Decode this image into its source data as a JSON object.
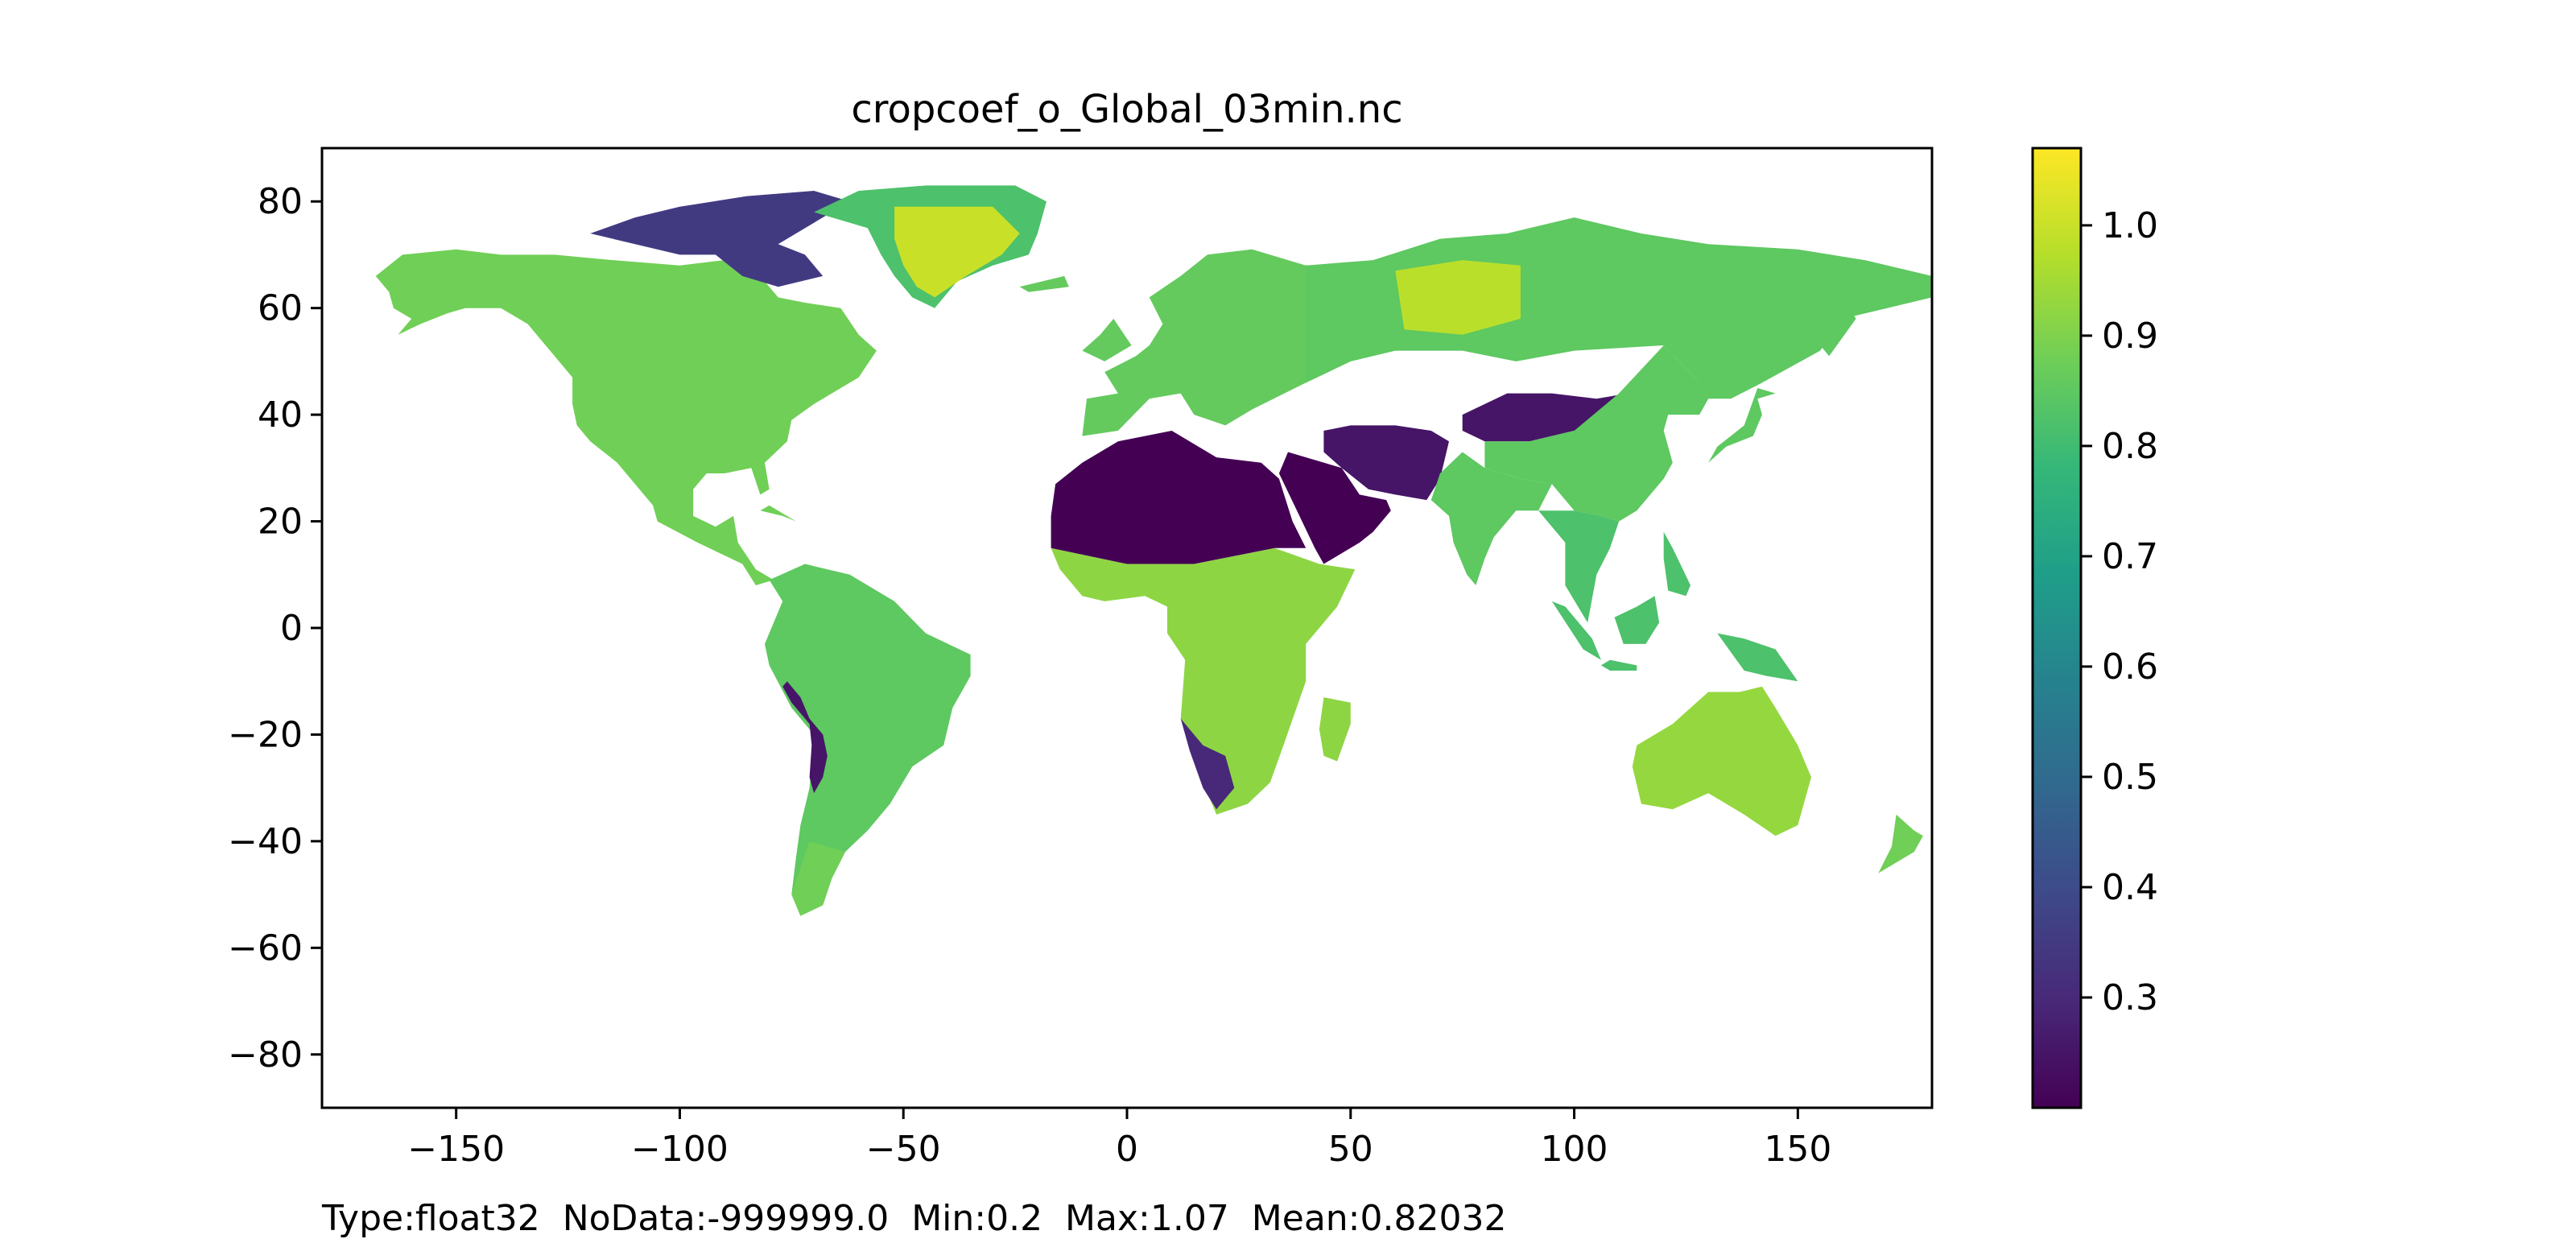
{
  "chart_data": {
    "type": "heatmap",
    "title": "cropcoef_o_Global_03min.nc",
    "xlabel": "",
    "ylabel": "",
    "xlim": [
      -180,
      180
    ],
    "ylim": [
      -90,
      90
    ],
    "xticks": [
      -150,
      -100,
      -50,
      0,
      50,
      100,
      150
    ],
    "yticks": [
      80,
      60,
      40,
      20,
      0,
      -20,
      -40,
      -60,
      -80
    ],
    "xtick_labels": [
      "−150",
      "−100",
      "−50",
      "0",
      "50",
      "100",
      "150"
    ],
    "ytick_labels": [
      "80",
      "60",
      "40",
      "20",
      "0",
      "−20",
      "−40",
      "−60",
      "−80"
    ],
    "colormap": "viridis",
    "colorbar": {
      "vmin": 0.2,
      "vmax": 1.07,
      "ticks": [
        0.3,
        0.4,
        0.5,
        0.6,
        0.7,
        0.8,
        0.9,
        1.0
      ],
      "tick_labels": [
        "0.3",
        "0.4",
        "0.5",
        "0.6",
        "0.7",
        "0.8",
        "0.9",
        "1.0"
      ],
      "colors": [
        "#440154",
        "#482878",
        "#3e4989",
        "#31688e",
        "#26828e",
        "#1f9e89",
        "#35b779",
        "#6ece58",
        "#b5de2b",
        "#fde725"
      ]
    },
    "value_regions": [
      {
        "name": "North America",
        "value": 0.88
      },
      {
        "name": "Canadian Arctic Archipelago",
        "value": 0.35
      },
      {
        "name": "Greenland ice sheet",
        "value": 1.0
      },
      {
        "name": "Greenland coast",
        "value": 0.82
      },
      {
        "name": "South America",
        "value": 0.85
      },
      {
        "name": "Andes / Atacama",
        "value": 0.25
      },
      {
        "name": "Patagonia",
        "value": 0.88
      },
      {
        "name": "Europe",
        "value": 0.86
      },
      {
        "name": "Sahara",
        "value": 0.2
      },
      {
        "name": "Arabian Peninsula",
        "value": 0.2
      },
      {
        "name": "Iran / Afghanistan / Pakistan",
        "value": 0.25
      },
      {
        "name": "Tarim / Gobi deserts",
        "value": 0.25
      },
      {
        "name": "Sub-Saharan Africa",
        "value": 0.92
      },
      {
        "name": "Namib / Kalahari",
        "value": 0.3
      },
      {
        "name": "Madagascar",
        "value": 0.92
      },
      {
        "name": "Siberia and Russia",
        "value": 0.85
      },
      {
        "name": "West Siberian plain",
        "value": 0.98
      },
      {
        "name": "India",
        "value": 0.85
      },
      {
        "name": "China / East Asia",
        "value": 0.85
      },
      {
        "name": "Southeast Asia / Indonesia",
        "value": 0.82
      },
      {
        "name": "Australia",
        "value": 0.93
      },
      {
        "name": "New Zealand",
        "value": 0.88
      }
    ]
  },
  "stats_text": "Type:float32  NoData:-999999.0  Min:0.2  Max:1.07  Mean:0.82032"
}
